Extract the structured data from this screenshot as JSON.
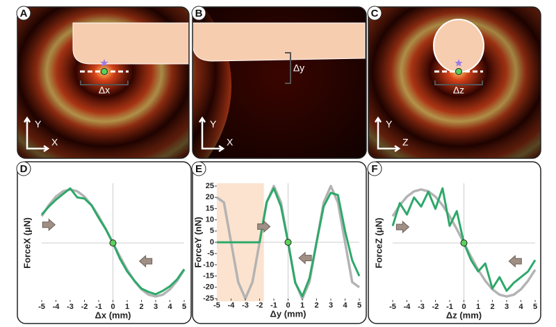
{
  "image_panels": [
    {
      "label": "A",
      "measure_label": "Δx",
      "axis_vertical": "Y",
      "axis_horizontal": "X"
    },
    {
      "label": "B",
      "measure_label": "Δy",
      "axis_vertical": "Y",
      "axis_horizontal": "X"
    },
    {
      "label": "C",
      "measure_label": "Δz",
      "axis_vertical": "Y",
      "axis_horizontal": "Z"
    }
  ],
  "chart_data": [
    {
      "type": "line",
      "panel_label": "D",
      "x_label": "Δx (mm)",
      "y_label": "ForceX (μN)",
      "x": [
        -5,
        -4.5,
        -4,
        -3.5,
        -3,
        -2.5,
        -2,
        -1.5,
        -1,
        -0.5,
        0,
        0.5,
        1,
        1.5,
        2,
        2.5,
        3,
        3.5,
        4,
        4.5,
        5
      ],
      "xlim": [
        -5,
        5
      ],
      "xticks": [
        -5,
        -4,
        -3,
        -2,
        -1,
        0,
        1,
        2,
        3,
        4,
        5
      ],
      "ylim": [
        -5,
        5
      ],
      "series": [
        {
          "color": "#b3b3b3",
          "values": [
            2.35,
            3.32,
            4.07,
            4.54,
            4.7,
            4.54,
            4.07,
            3.32,
            2.35,
            1.22,
            0,
            -1.22,
            -2.35,
            -3.32,
            -4.07,
            -4.54,
            -4.7,
            -4.54,
            -4.07,
            -3.32,
            -2.35
          ]
        },
        {
          "color": "#2ea86a",
          "values": [
            2.5,
            3.2,
            3.8,
            4.3,
            4.8,
            4.0,
            3.9,
            3.3,
            2.2,
            1.2,
            0,
            -1.4,
            -2.5,
            -3.3,
            -4.0,
            -4.3,
            -4.5,
            -4.2,
            -3.8,
            -3.2,
            -2.3
          ]
        }
      ]
    },
    {
      "type": "line",
      "panel_label": "E",
      "x_label": "Δy (mm)",
      "y_label": "ForceY (nN)",
      "x": [
        -5,
        -4.5,
        -4,
        -3.5,
        -3,
        -2.5,
        -2,
        -1.5,
        -1,
        -0.5,
        0,
        0.5,
        1,
        1.5,
        2,
        2.5,
        3,
        3.5,
        4,
        4.5,
        5
      ],
      "xlim": [
        -5,
        5
      ],
      "xticks": [
        -5,
        -4,
        -3,
        -2,
        -1,
        0,
        1,
        2,
        3,
        4,
        5
      ],
      "ylim": [
        -25,
        25
      ],
      "yticks": [
        -25,
        -20,
        -15,
        -10,
        -5,
        0,
        5,
        10,
        15,
        20,
        25
      ],
      "highlight_x": [
        -5,
        -1.7
      ],
      "highlight_color": "#fbe3cf",
      "series": [
        {
          "color": "#b3b3b3",
          "values": [
            20,
            17.7,
            0,
            -17.7,
            -25,
            -17.7,
            0,
            17.7,
            25,
            17.7,
            0,
            -17.7,
            -25,
            -17.7,
            0,
            17.7,
            25,
            17.7,
            0,
            -17.7,
            -20
          ]
        },
        {
          "color": "#2ea86a",
          "values": [
            0,
            0,
            0,
            0,
            0,
            0,
            0,
            18,
            24,
            16,
            0,
            -18,
            -24,
            -16,
            0,
            16,
            22,
            21,
            5,
            -8,
            -15
          ]
        }
      ]
    },
    {
      "type": "line",
      "panel_label": "F",
      "x_label": "Δz (mm)",
      "y_label": "ForceZ (μN)",
      "x": [
        -5,
        -4.5,
        -4,
        -3.5,
        -3,
        -2.5,
        -2,
        -1.5,
        -1,
        -0.5,
        0,
        0.5,
        1,
        1.5,
        2,
        2.5,
        3,
        3.5,
        4,
        4.5,
        5
      ],
      "xlim": [
        -5,
        5
      ],
      "xticks": [
        -5,
        -4,
        -3,
        -2,
        -1,
        0,
        1,
        2,
        3,
        4,
        5
      ],
      "ylim": [
        -5,
        5
      ],
      "series": [
        {
          "color": "#b3b3b3",
          "values": [
            2.35,
            3.32,
            4.07,
            4.54,
            4.7,
            4.54,
            4.07,
            3.32,
            2.35,
            1.22,
            0,
            -1.22,
            -2.35,
            -3.32,
            -4.07,
            -4.54,
            -4.7,
            -4.54,
            -4.07,
            -3.32,
            -2.35
          ]
        },
        {
          "color": "#2ea86a",
          "values": [
            1.5,
            3.5,
            2.5,
            4.0,
            3.2,
            4.5,
            3.0,
            4.8,
            1.5,
            2.8,
            0,
            -1.5,
            -2.5,
            -1.8,
            -4.0,
            -3.0,
            -4.2,
            -3.5,
            -3.0,
            -2.5,
            -1.5
          ]
        }
      ]
    }
  ]
}
